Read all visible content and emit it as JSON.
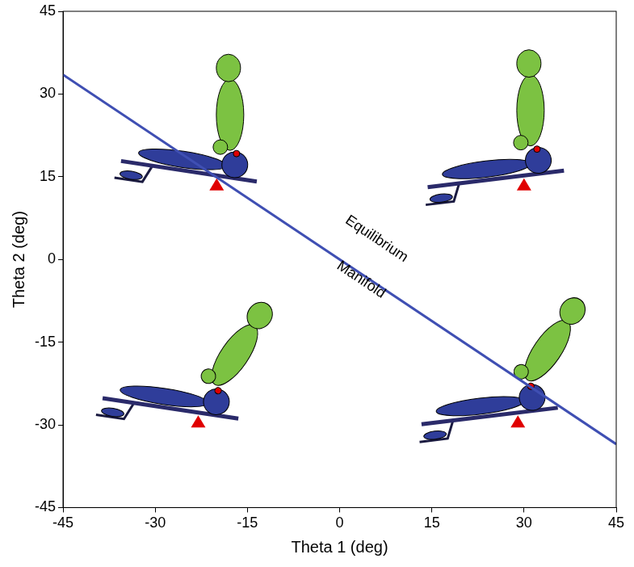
{
  "chart_data": {
    "type": "line",
    "x": [
      -45,
      45
    ],
    "series": [
      {
        "name": "Equilibrium Manifold",
        "color": "#3f4fb3",
        "values": [
          33.5,
          -33.5
        ]
      }
    ],
    "xlabel": "Theta 1 (deg)",
    "ylabel": "Theta 2 (deg)",
    "xlim": [
      -45,
      45
    ],
    "ylim": [
      -45,
      45
    ],
    "xticks": [
      -45,
      -30,
      -15,
      0,
      15,
      30,
      45
    ],
    "yticks": [
      -45,
      -30,
      -15,
      0,
      15,
      30,
      45
    ],
    "grid": false,
    "annotations": [
      {
        "text": "Equilibrium",
        "x": 6,
        "y": 3.7
      },
      {
        "text": "Manifold",
        "x": 3.5,
        "y": -3.7
      }
    ]
  }
}
